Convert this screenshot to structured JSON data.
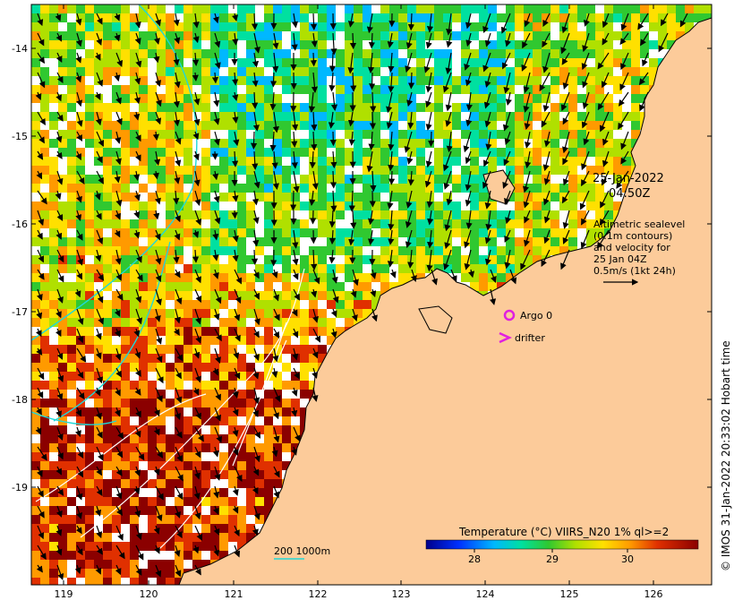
{
  "map": {
    "date_line1": "25-Jan-2022",
    "date_line2": "04:50Z",
    "altimetry_note": [
      "Altimetric sealevel",
      "(0.1m contours)",
      "and velocity for",
      "25 Jan 04Z",
      "0.5m/s (1kt 24h)"
    ],
    "argo_label": "Argo 0",
    "drifter_label": "drifter",
    "depth_legend": "200  1000m",
    "credit": "© IMOS 31-Jan-2022 20:33:02 Hobart time",
    "x_ticks": [
      "119",
      "120",
      "121",
      "122",
      "123",
      "124",
      "125",
      "126"
    ],
    "y_ticks": [
      "-14",
      "-15",
      "-16",
      "-17",
      "-18",
      "-19"
    ],
    "colorbar": {
      "title": "Temperature (°C) VIIRS_N20 1% ql>=2",
      "ticks": [
        "28",
        "29",
        "30"
      ]
    },
    "colors": {
      "land": "#FCCB9A",
      "argo": "#E020E0",
      "drifter": "#E020E0",
      "contour": "#ffffff",
      "isobath": "#20D8D8"
    }
  }
}
